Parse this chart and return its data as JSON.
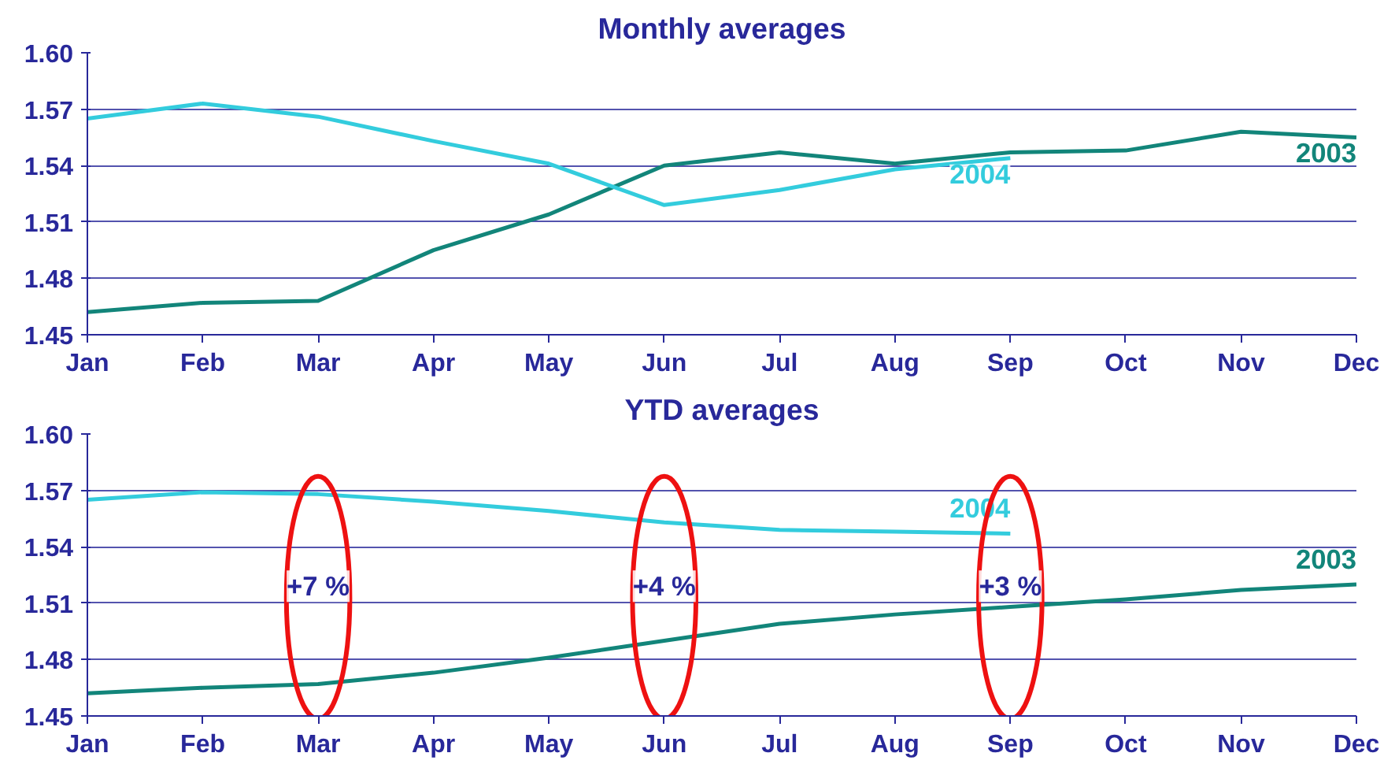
{
  "chart_data": [
    {
      "type": "line",
      "title": "Monthly averages",
      "categories": [
        "Jan",
        "Feb",
        "Mar",
        "Apr",
        "May",
        "Jun",
        "Jul",
        "Aug",
        "Sep",
        "Oct",
        "Nov",
        "Dec"
      ],
      "ylim": [
        1.45,
        1.6
      ],
      "yticks": [
        1.45,
        1.48,
        1.51,
        1.54,
        1.57,
        {
          "value": 1.6,
          "label": "1.60"
        }
      ],
      "grid": "y",
      "series": [
        {
          "name": "2003",
          "color": "#12857a",
          "values": [
            1.462,
            1.467,
            1.468,
            1.495,
            1.514,
            1.54,
            1.547,
            1.541,
            1.547,
            1.548,
            1.558,
            1.555
          ]
        },
        {
          "name": "2004",
          "color": "#33ccdd",
          "values": [
            1.565,
            1.573,
            1.566,
            1.553,
            1.541,
            1.519,
            1.527,
            1.538,
            1.544,
            null,
            null,
            null
          ]
        }
      ]
    },
    {
      "type": "line",
      "title": "YTD averages",
      "categories": [
        "Jan",
        "Feb",
        "Mar",
        "Apr",
        "May",
        "Jun",
        "Jul",
        "Aug",
        "Sep",
        "Oct",
        "Nov",
        "Dec"
      ],
      "ylim": [
        1.45,
        1.6
      ],
      "yticks": [
        1.45,
        1.48,
        1.51,
        1.54,
        1.57,
        {
          "value": 1.6,
          "label": "1.60"
        }
      ],
      "grid": "y",
      "series": [
        {
          "name": "2003",
          "color": "#12857a",
          "values": [
            1.462,
            1.465,
            1.467,
            1.473,
            1.481,
            1.49,
            1.499,
            1.504,
            1.508,
            1.512,
            1.517,
            1.52
          ]
        },
        {
          "name": "2004",
          "color": "#33ccdd",
          "values": [
            1.565,
            1.569,
            1.568,
            1.564,
            1.559,
            1.553,
            1.549,
            1.548,
            1.547,
            null,
            null,
            null
          ]
        }
      ],
      "annotations": [
        "+7 %",
        "+4 %",
        "+3 %"
      ]
    }
  ]
}
